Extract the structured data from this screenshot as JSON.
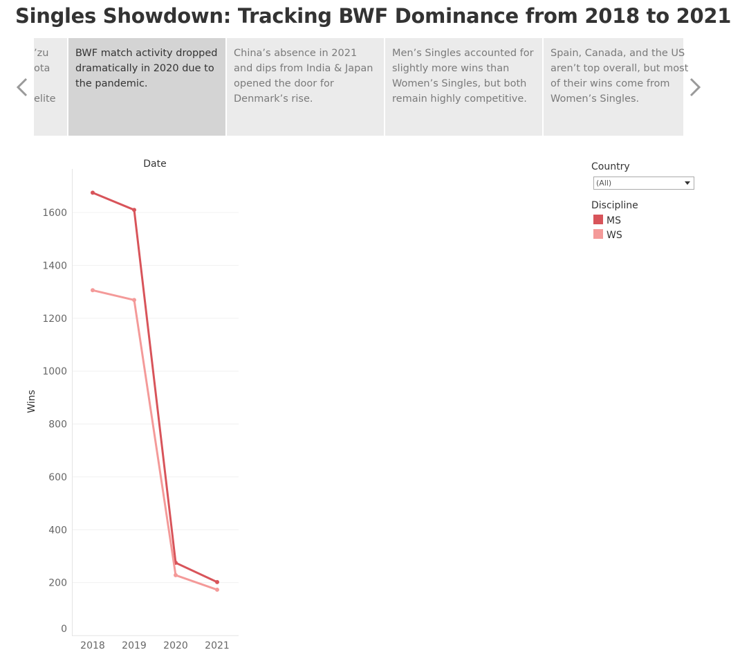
{
  "header": {
    "title": "Singles Showdown: Tracking BWF Dominance from 2018 to 2021"
  },
  "story": {
    "partial_point": [
      "’zu",
      "ota",
      "elite"
    ],
    "points": [
      "BWF match activity dropped dramatically in 2020 due to the pandemic.",
      "China’s absence in 2021 and dips from India & Japan opened the door for Denmark’s rise.",
      "Men’s Singles accounted for slightly more wins than Women’s Singles, but both remain highly competitive.",
      "Spain, Canada, and the US aren’t top overall, but most of their wins come from Women’s Singles."
    ]
  },
  "filters": {
    "country": {
      "label": "Country",
      "value": "(All)"
    }
  },
  "chart_data": {
    "type": "line",
    "header": "Date",
    "y_label": "Wins",
    "categories": [
      "2018",
      "2019",
      "2020",
      "2021"
    ],
    "legend_title": "Discipline",
    "series": [
      {
        "name": "MS",
        "color": "#d8545a",
        "values": [
          1675,
          1610,
          275,
          202
        ]
      },
      {
        "name": "WS",
        "color": "#f49a99",
        "values": [
          1306,
          1269,
          228,
          173
        ]
      }
    ],
    "ylim": [
      0,
      1765
    ],
    "yticks": [
      0,
      200,
      400,
      600,
      800,
      1000,
      1200,
      1400,
      1600
    ],
    "grid": true
  }
}
